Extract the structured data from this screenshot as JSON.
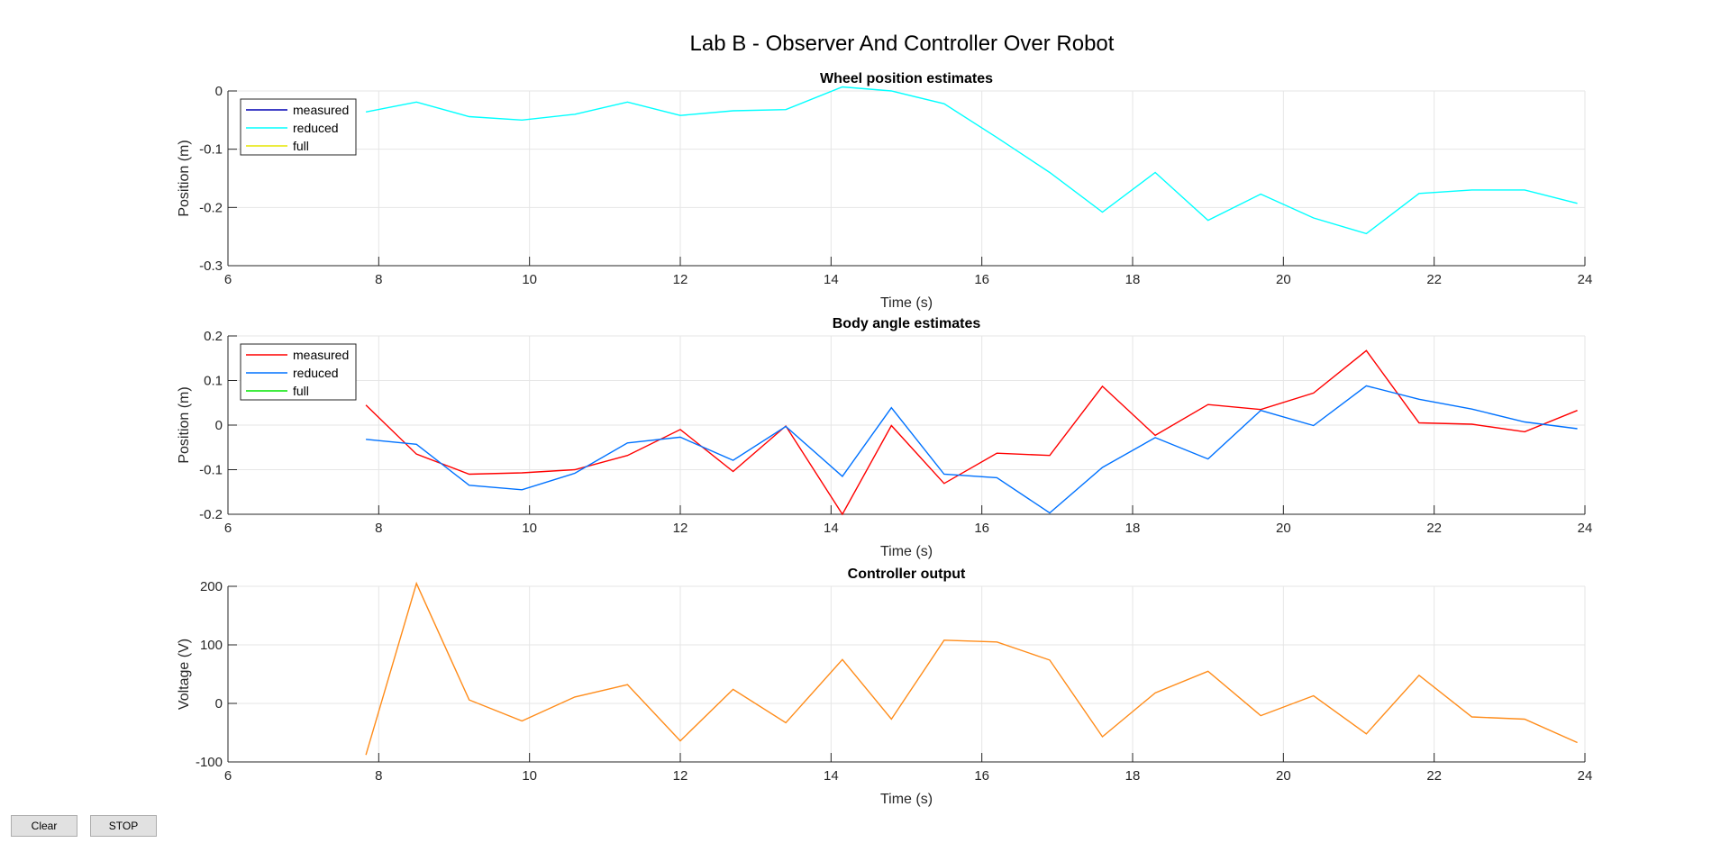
{
  "figure": {
    "title": "Lab B - Observer And Controller Over Robot"
  },
  "buttons": {
    "clear": "Clear",
    "stop": "STOP"
  },
  "chart_data": [
    {
      "type": "line",
      "title": "Wheel position estimates",
      "xlabel": "Time (s)",
      "ylabel": "Position (m)",
      "xlim": [
        6,
        24
      ],
      "ylim": [
        -0.3,
        0
      ],
      "xticks": [
        6,
        8,
        10,
        12,
        14,
        16,
        18,
        20,
        22,
        24
      ],
      "yticks": [
        -0.3,
        -0.2,
        -0.1,
        0
      ],
      "ytick_labels": [
        "-0.3",
        "-0.2",
        "-0.1",
        "0"
      ],
      "grid": true,
      "legend": "top-left",
      "series": [
        {
          "name": "measured",
          "color": "#0000b3",
          "x": [],
          "y": []
        },
        {
          "name": "reduced",
          "color": "#00ffff",
          "x": [
            7.83,
            8.5,
            9.2,
            9.9,
            10.6,
            11.3,
            12.0,
            12.7,
            13.4,
            14.15,
            14.8,
            15.5,
            16.2,
            16.9,
            17.6,
            18.3,
            19.0,
            19.7,
            20.4,
            21.1,
            21.8,
            22.5,
            23.2,
            23.9
          ],
          "y": [
            -0.036,
            -0.019,
            -0.044,
            -0.05,
            -0.04,
            -0.019,
            -0.042,
            -0.034,
            -0.032,
            0.007,
            0.0,
            -0.022,
            -0.08,
            -0.14,
            -0.208,
            -0.14,
            -0.222,
            -0.177,
            -0.218,
            -0.245,
            -0.176,
            -0.17,
            -0.17,
            -0.193
          ]
        },
        {
          "name": "full",
          "color": "#e6e600",
          "x": [],
          "y": []
        }
      ]
    },
    {
      "type": "line",
      "title": "Body angle estimates",
      "xlabel": "Time (s)",
      "ylabel": "Position (m)",
      "xlim": [
        6,
        24
      ],
      "ylim": [
        -0.2,
        0.2
      ],
      "xticks": [
        6,
        8,
        10,
        12,
        14,
        16,
        18,
        20,
        22,
        24
      ],
      "yticks": [
        -0.2,
        -0.1,
        0,
        0.1,
        0.2
      ],
      "ytick_labels": [
        "-0.2",
        "-0.1",
        "0",
        "0.1",
        "0.2"
      ],
      "grid": true,
      "legend": "top-left",
      "series": [
        {
          "name": "measured",
          "color": "#ff0000",
          "x": [
            7.83,
            8.5,
            9.2,
            9.9,
            10.6,
            11.3,
            12.0,
            12.7,
            13.4,
            14.15,
            14.8,
            15.5,
            16.2,
            16.9,
            17.6,
            18.3,
            19.0,
            19.7,
            20.4,
            21.1,
            21.8,
            22.5,
            23.2,
            23.9
          ],
          "y": [
            0.045,
            -0.065,
            -0.11,
            -0.107,
            -0.1,
            -0.068,
            -0.01,
            -0.104,
            -0.002,
            -0.2,
            -0.001,
            -0.131,
            -0.063,
            -0.068,
            0.087,
            -0.023,
            0.046,
            0.035,
            0.072,
            0.167,
            0.005,
            0.002,
            -0.015,
            0.033
          ]
        },
        {
          "name": "reduced",
          "color": "#0072ff",
          "x": [
            7.83,
            8.5,
            9.2,
            9.9,
            10.6,
            11.3,
            12.0,
            12.7,
            13.4,
            14.15,
            14.8,
            15.5,
            16.2,
            16.9,
            17.6,
            18.3,
            19.0,
            19.7,
            20.4,
            21.1,
            21.8,
            22.5,
            23.2,
            23.9
          ],
          "y": [
            -0.032,
            -0.043,
            -0.135,
            -0.145,
            -0.108,
            -0.04,
            -0.027,
            -0.079,
            -0.003,
            -0.115,
            0.039,
            -0.11,
            -0.118,
            -0.197,
            -0.095,
            -0.028,
            -0.076,
            0.033,
            -0.001,
            0.088,
            0.058,
            0.036,
            0.007,
            -0.008
          ]
        },
        {
          "name": "full",
          "color": "#00e600",
          "x": [],
          "y": []
        }
      ]
    },
    {
      "type": "line",
      "title": "Controller output",
      "xlabel": "Time (s)",
      "ylabel": "Voltage (V)",
      "xlim": [
        6,
        24
      ],
      "ylim": [
        -100,
        200
      ],
      "xticks": [
        6,
        8,
        10,
        12,
        14,
        16,
        18,
        20,
        22,
        24
      ],
      "yticks": [
        -100,
        0,
        100,
        200
      ],
      "ytick_labels": [
        "-100",
        "0",
        "100",
        "200"
      ],
      "grid": true,
      "series": [
        {
          "name": "",
          "color": "#ff8c1a",
          "x": [
            7.83,
            8.5,
            9.2,
            9.9,
            10.6,
            11.3,
            12.0,
            12.7,
            13.4,
            14.15,
            14.8,
            15.5,
            16.2,
            16.9,
            17.6,
            18.3,
            19.0,
            19.7,
            20.4,
            21.1,
            21.8,
            22.5,
            23.2,
            23.9
          ],
          "y": [
            -88,
            205,
            6,
            -30,
            11,
            32,
            -64,
            24,
            -33,
            75,
            -27,
            108,
            105,
            74,
            -57,
            18,
            55,
            -21,
            13,
            -52,
            48,
            -23,
            -27,
            -67
          ]
        }
      ]
    }
  ]
}
